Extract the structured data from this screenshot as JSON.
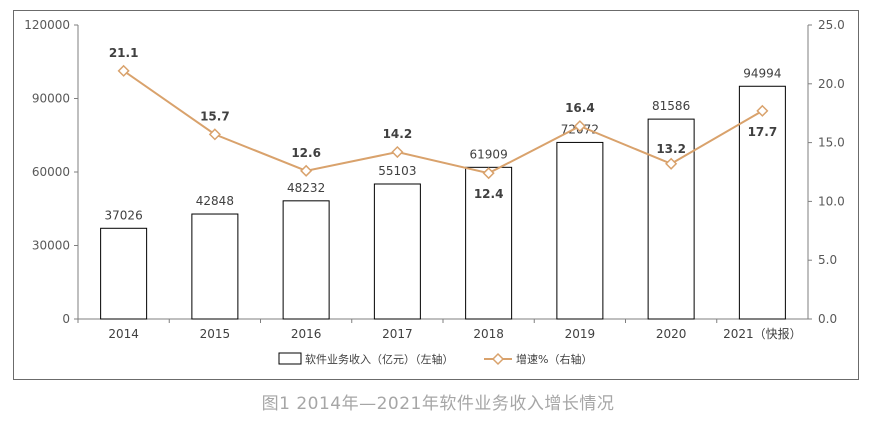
{
  "caption": "图1  2014年—2021年软件业务收入增长情况",
  "chart_data": {
    "type": "bar+line",
    "categories": [
      "2014",
      "2015",
      "2016",
      "2017",
      "2018",
      "2019",
      "2020",
      "2021（快报）"
    ],
    "series": [
      {
        "name": "软件业务收入（亿元）（左轴）",
        "type": "bar",
        "axis": "left",
        "values": [
          37026,
          42848,
          48232,
          55103,
          61909,
          72072,
          81586,
          94994
        ]
      },
      {
        "name": "增速%（右轴）",
        "type": "line",
        "axis": "right",
        "values": [
          21.1,
          15.7,
          12.6,
          14.2,
          12.4,
          16.4,
          13.2,
          17.7
        ]
      }
    ],
    "y_left": {
      "ticks": [
        "0",
        "30000",
        "60000",
        "90000",
        "120000"
      ],
      "lim": [
        0,
        120000
      ]
    },
    "y_right": {
      "ticks": [
        "0.0",
        "5.0",
        "10.0",
        "15.0",
        "20.0",
        "25.0"
      ],
      "lim": [
        0,
        25
      ]
    },
    "legend_position": "bottom",
    "colors": {
      "bar_fill": "#ffffff",
      "bar_stroke": "#000000",
      "line": "#d9a26c",
      "axis": "#7f7f7f"
    }
  }
}
